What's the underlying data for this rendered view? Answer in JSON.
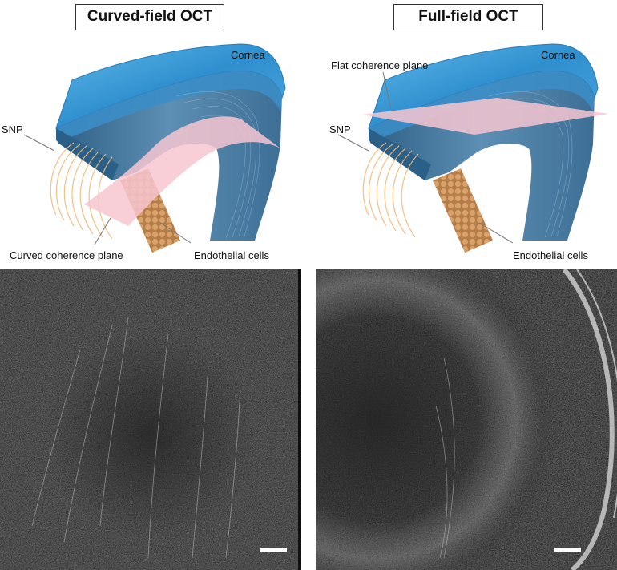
{
  "panels": {
    "left": {
      "title": "Curved-field OCT",
      "labels": {
        "cornea": "Cornea",
        "snp": "SNP",
        "plane": "Curved coherence plane",
        "endothelial": "Endothelial cells"
      }
    },
    "right": {
      "title": "Full-field OCT",
      "labels": {
        "cornea": "Cornea",
        "snp": "SNP",
        "plane": "Flat coherence plane",
        "endothelial": "Endothelial cells"
      }
    }
  },
  "colors": {
    "epithelium": "#3f9fd6",
    "stroma": "#4a7fa6",
    "nerves": "#f2b977",
    "endothelium": "#c8905a",
    "coherence_plane": "#f7c6d0",
    "micrograph_bg": "#2e2e2e"
  }
}
